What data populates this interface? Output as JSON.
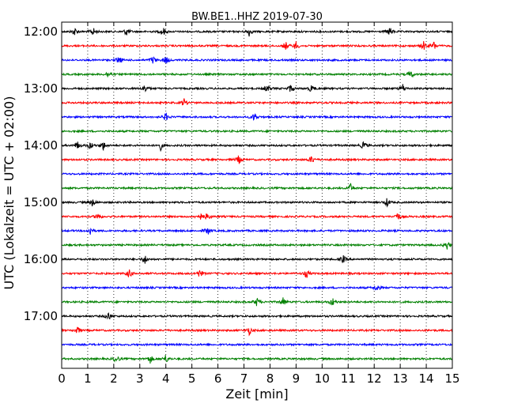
{
  "chart_data": {
    "type": "line",
    "title": "BW.BE1..HHZ 2019-07-30",
    "xlabel": "Zeit  [min]",
    "ylabel": "UTC (Lokalzeit = UTC + 02:00)",
    "xlim": [
      0,
      15
    ],
    "x_ticks": [
      0,
      1,
      2,
      3,
      4,
      5,
      6,
      7,
      8,
      9,
      10,
      11,
      12,
      13,
      14,
      15
    ],
    "x_tick_labels": [
      "0",
      "1",
      "2",
      "3",
      "4",
      "5",
      "6",
      "7",
      "8",
      "9",
      "10",
      "11",
      "12",
      "13",
      "14",
      "15"
    ],
    "y_tick_labels": [
      "12:00",
      "13:00",
      "14:00",
      "15:00",
      "16:00",
      "17:00"
    ],
    "grid": "vertical dotted",
    "trace_colors": [
      "#000000",
      "#ff0000",
      "#0000ff",
      "#008000"
    ],
    "traces": [
      {
        "start": "12:00",
        "events": [
          0.5,
          1.2,
          2.5,
          3.9,
          7.2,
          12.6
        ]
      },
      {
        "start": "12:15",
        "events": [
          8.6,
          9.0,
          13.9,
          14.3
        ]
      },
      {
        "start": "12:30",
        "events": [
          2.2,
          3.5,
          4.0
        ]
      },
      {
        "start": "12:45",
        "events": [
          1.8,
          13.4
        ]
      },
      {
        "start": "13:00",
        "events": [
          3.2,
          7.9,
          8.8,
          9.6,
          13.1
        ]
      },
      {
        "start": "13:15",
        "events": [
          4.7
        ]
      },
      {
        "start": "13:30",
        "events": [
          4.0,
          7.4
        ]
      },
      {
        "start": "13:45",
        "events": []
      },
      {
        "start": "14:00",
        "events": [
          0.6,
          1.1,
          1.6,
          3.8,
          11.6
        ]
      },
      {
        "start": "14:15",
        "events": [
          6.8,
          9.6
        ]
      },
      {
        "start": "14:30",
        "events": []
      },
      {
        "start": "14:45",
        "events": [
          11.1
        ]
      },
      {
        "start": "15:00",
        "events": [
          1.2,
          12.5
        ]
      },
      {
        "start": "15:15",
        "events": [
          1.4,
          5.3,
          5.6,
          12.9
        ]
      },
      {
        "start": "15:30",
        "events": [
          1.1,
          5.6
        ]
      },
      {
        "start": "15:45",
        "events": [
          14.8
        ]
      },
      {
        "start": "16:00",
        "events": [
          3.2,
          10.8
        ]
      },
      {
        "start": "16:15",
        "events": [
          2.6,
          5.3,
          9.4
        ]
      },
      {
        "start": "16:30",
        "events": [
          12.1
        ]
      },
      {
        "start": "16:45",
        "events": [
          7.5,
          8.5,
          10.4
        ]
      },
      {
        "start": "17:00",
        "events": [
          1.8
        ]
      },
      {
        "start": "17:15",
        "events": [
          0.6,
          7.2
        ]
      },
      {
        "start": "17:30",
        "events": []
      },
      {
        "start": "17:45",
        "events": [
          2.1,
          3.4,
          4.0
        ]
      }
    ]
  }
}
